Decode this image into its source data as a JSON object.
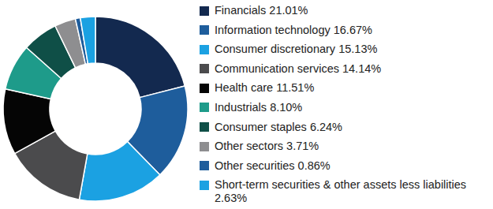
{
  "chart_data": {
    "type": "pie",
    "categories": [
      "Financials",
      "Information technology",
      "Consumer discretionary",
      "Communication services",
      "Health care",
      "Industrials",
      "Consumer staples",
      "Other sectors",
      "Other securities",
      "Short-term securities & other assets less liabilities"
    ],
    "values": [
      21.01,
      16.67,
      15.13,
      14.14,
      11.51,
      8.1,
      6.24,
      3.71,
      0.86,
      2.63
    ],
    "value_labels": [
      "21.01%",
      "16.67%",
      "15.13%",
      "14.14%",
      "11.51%",
      "8.10%",
      "6.24%",
      "3.71%",
      "0.86%",
      "2.63%"
    ],
    "colors": [
      "#13294f",
      "#1e5d9c",
      "#1ba1e2",
      "#4b4b4d",
      "#050505",
      "#1e9b8a",
      "#0f4f47",
      "#8e8e90",
      "#1e5d9c",
      "#1ba1e2"
    ],
    "legend": "right"
  }
}
